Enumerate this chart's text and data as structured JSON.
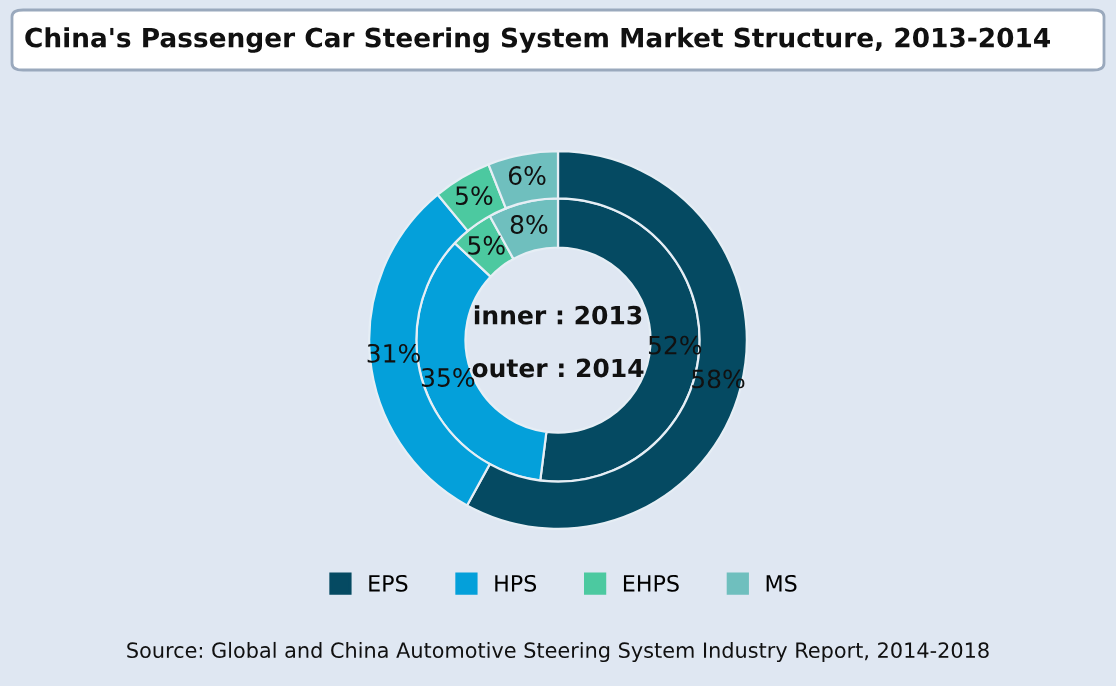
{
  "chart_data": {
    "type": "donut",
    "title": "China's Passenger Car Steering System Market Structure, 2013-2014",
    "categories": [
      "EPS",
      "HPS",
      "EHPS",
      "MS"
    ],
    "colors": [
      "#054a62",
      "#04a0da",
      "#4cc9a0",
      "#6fbfbe"
    ],
    "series": [
      {
        "values": [
          52,
          35,
          5,
          8
        ],
        "value_labels": [
          "52%",
          "35%",
          "5%",
          "8%"
        ]
      },
      {
        "values": [
          58,
          31,
          5,
          6
        ],
        "value_labels": [
          "58%",
          "31%",
          "5%",
          "6%"
        ]
      }
    ],
    "data_labels": true,
    "legend": "bottom",
    "annotations": [
      "inner : 2013",
      "outer : 2014",
      "Source: Global and China Automotive Steering System Industry Report, 2014-2018"
    ]
  }
}
